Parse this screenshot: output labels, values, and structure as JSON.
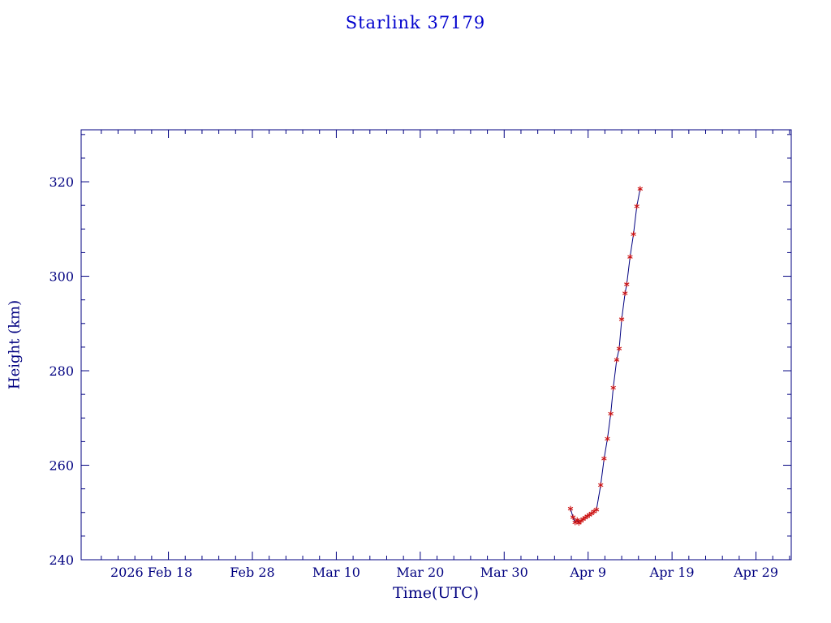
{
  "chart_data": {
    "type": "line",
    "title": "Starlink 37179",
    "xlabel": "Time(UTC)",
    "ylabel": "Height (km)",
    "x_unit": "days since 2026 Feb 18",
    "xlim": [
      -10.4,
      74.2
    ],
    "ylim": [
      240,
      331
    ],
    "x_ticks": [
      {
        "day": 0,
        "label": "2026 Feb 18",
        "dx": -21
      },
      {
        "day": 10,
        "label": "Feb 28",
        "dx": 0
      },
      {
        "day": 20,
        "label": "Mar 10",
        "dx": 0
      },
      {
        "day": 30,
        "label": "Mar 20",
        "dx": 0
      },
      {
        "day": 40,
        "label": "Mar 30",
        "dx": 0
      },
      {
        "day": 50,
        "label": "Apr 9",
        "dx": 0
      },
      {
        "day": 60,
        "label": "Apr 19",
        "dx": 0
      },
      {
        "day": 70,
        "label": "Apr 29",
        "dx": 0
      }
    ],
    "y_ticks": [
      240,
      260,
      280,
      300,
      320
    ],
    "x_minor_step": 2,
    "y_minor_step": 5,
    "grid": false,
    "legend": "none",
    "colors": {
      "title": "#0000cd",
      "axis": "#000080",
      "tick_text": "#000080",
      "line": "#000080",
      "marker": "#cc1111",
      "background": "#ffffff"
    },
    "series": [
      {
        "name": "height",
        "marker": "asterisk",
        "points": [
          [
            47.9,
            250.8
          ],
          [
            48.2,
            249.0
          ],
          [
            48.45,
            247.9
          ],
          [
            48.7,
            248.4
          ],
          [
            48.9,
            247.8
          ],
          [
            49.15,
            248.2
          ],
          [
            49.4,
            248.6
          ],
          [
            49.65,
            248.9
          ],
          [
            49.9,
            249.2
          ],
          [
            50.15,
            249.5
          ],
          [
            50.4,
            249.8
          ],
          [
            50.7,
            250.2
          ],
          [
            51.0,
            250.6
          ],
          [
            51.5,
            255.8
          ],
          [
            51.9,
            261.4
          ],
          [
            52.3,
            265.6
          ],
          [
            52.7,
            270.9
          ],
          [
            53.0,
            276.4
          ],
          [
            53.4,
            282.3
          ],
          [
            53.7,
            284.7
          ],
          [
            54.0,
            290.9
          ],
          [
            54.4,
            296.4
          ],
          [
            54.6,
            298.3
          ],
          [
            55.0,
            304.1
          ],
          [
            55.4,
            308.9
          ],
          [
            55.8,
            314.8
          ],
          [
            56.2,
            318.5
          ]
        ]
      }
    ]
  }
}
